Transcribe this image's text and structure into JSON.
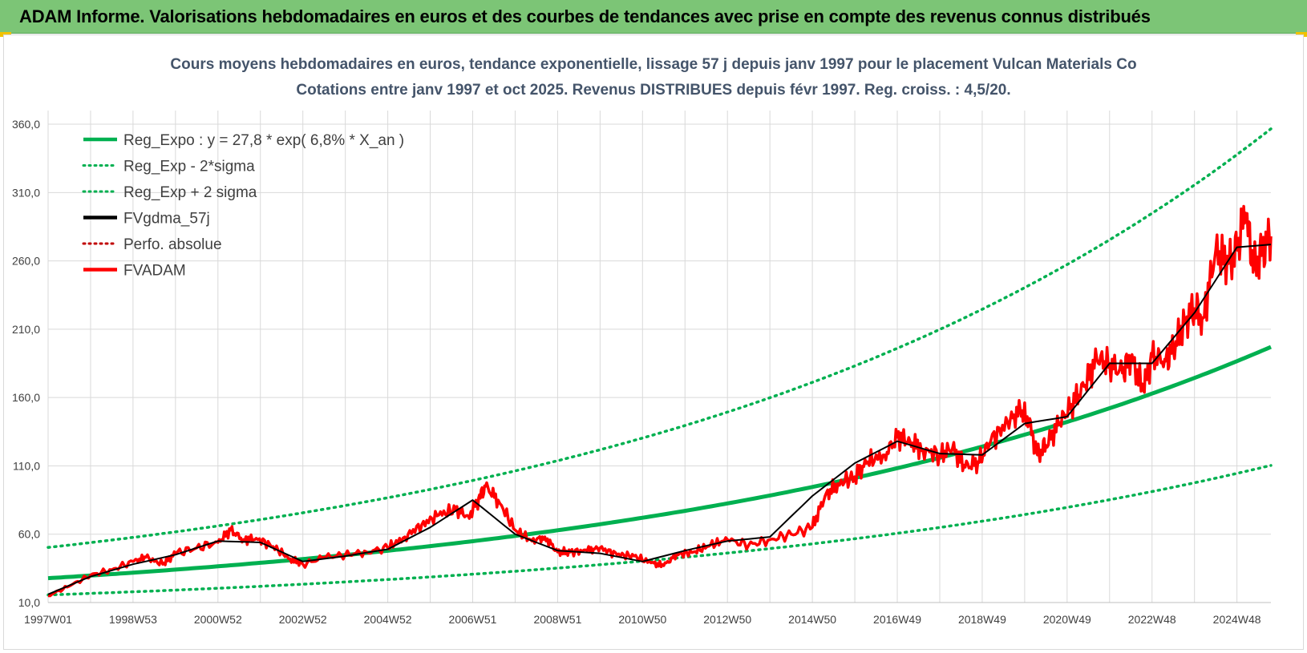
{
  "banner": {
    "title": "ADAM Informe. Valorisations hebdomadaires en euros et des courbes de tendances avec prise en compte des revenus connus distribués"
  },
  "colors": {
    "banner_bg": "#7cc576",
    "trend": "#00b050",
    "smooth": "#000000",
    "price": "#ff0000",
    "perf": "#c00000",
    "grid": "#d9d9d9"
  },
  "chart_data": {
    "type": "line",
    "title": "Cours moyens hebdomadaires en euros, tendance exponentielle, lissage 57 j depuis janv 1997 pour le placement Vulcan Materials Co",
    "subtitle": "Cotations entre janv 1997 et oct 2025. Revenus DISTRIBUES depuis févr 1997. Reg. croiss. : 4,5/20.",
    "xlabel": "",
    "ylabel": "",
    "ylim": [
      10,
      370
    ],
    "y_ticks": [
      "10,0",
      "60,0",
      "110,0",
      "160,0",
      "210,0",
      "260,0",
      "310,0",
      "360,0"
    ],
    "x_range": [
      1997.0,
      2025.8
    ],
    "x_ticks": [
      {
        "label": "1997W01",
        "year": 1997.0
      },
      {
        "label": "1998W53",
        "year": 1999.0
      },
      {
        "label": "2000W52",
        "year": 2001.0
      },
      {
        "label": "2002W52",
        "year": 2003.0
      },
      {
        "label": "2004W52",
        "year": 2005.0
      },
      {
        "label": "2006W51",
        "year": 2007.0
      },
      {
        "label": "2008W51",
        "year": 2009.0
      },
      {
        "label": "2010W50",
        "year": 2011.0
      },
      {
        "label": "2012W50",
        "year": 2013.0
      },
      {
        "label": "2014W50",
        "year": 2015.0
      },
      {
        "label": "2016W49",
        "year": 2017.0
      },
      {
        "label": "2018W49",
        "year": 2019.0
      },
      {
        "label": "2020W49",
        "year": 2021.0
      },
      {
        "label": "2022W48",
        "year": 2023.0
      },
      {
        "label": "2024W48",
        "year": 2025.0
      }
    ],
    "grid": true,
    "legend_position": "top-left",
    "legend": [
      {
        "name": "Reg_Expo : y = 27,8 * exp( 6,8% *  X_an )",
        "color": "#00b050",
        "style": "solid"
      },
      {
        "name": "Reg_Exp - 2*sigma",
        "color": "#00b050",
        "style": "dotted"
      },
      {
        "name": "Reg_Exp + 2 sigma",
        "color": "#00b050",
        "style": "dotted"
      },
      {
        "name": "FVgdma_57j",
        "color": "#000000",
        "style": "solid"
      },
      {
        "name": "Perfo. absolue",
        "color": "#c00000",
        "style": "dotted"
      },
      {
        "name": "FVADAM",
        "color": "#ff0000",
        "style": "solid"
      }
    ],
    "trend": {
      "a": 27.8,
      "b": 0.068,
      "lower_factor": 0.56,
      "upper_factor": 1.81
    },
    "series": [
      {
        "name": "FVADAM",
        "x": [
          1997.0,
          1997.5,
          1998.0,
          1998.5,
          1999.0,
          1999.3,
          1999.7,
          2000.0,
          2000.5,
          2001.0,
          2001.3,
          2001.6,
          2001.9,
          2002.3,
          2002.7,
          2003.0,
          2003.5,
          2004.0,
          2004.5,
          2005.0,
          2005.4,
          2005.8,
          2006.2,
          2006.6,
          2006.9,
          2007.1,
          2007.3,
          2007.6,
          2008.0,
          2008.4,
          2008.7,
          2009.0,
          2009.3,
          2009.7,
          2010.0,
          2010.4,
          2010.8,
          2011.2,
          2011.5,
          2011.8,
          2012.2,
          2012.6,
          2013.0,
          2013.5,
          2014.0,
          2014.5,
          2015.0,
          2015.3,
          2015.6,
          2016.0,
          2016.3,
          2016.7,
          2017.0,
          2017.3,
          2017.6,
          2018.0,
          2018.3,
          2018.6,
          2018.9,
          2019.2,
          2019.6,
          2019.9,
          2020.1,
          2020.3,
          2020.5,
          2020.8,
          2021.1,
          2021.4,
          2021.7,
          2022.0,
          2022.3,
          2022.5,
          2022.8,
          2023.0,
          2023.3,
          2023.5,
          2023.8,
          2024.0,
          2024.2,
          2024.5,
          2024.8,
          2025.0,
          2025.2,
          2025.4,
          2025.6,
          2025.8
        ],
        "y": [
          15,
          22,
          30,
          34,
          40,
          43,
          38,
          46,
          50,
          54,
          63,
          56,
          57,
          51,
          42,
          38,
          43,
          45,
          47,
          50,
          58,
          67,
          74,
          78,
          73,
          83,
          95,
          85,
          63,
          55,
          58,
          47,
          47,
          48,
          50,
          45,
          44,
          39,
          37,
          45,
          47,
          52,
          56,
          52,
          56,
          60,
          65,
          88,
          97,
          102,
          113,
          118,
          131,
          128,
          122,
          118,
          123,
          109,
          113,
          128,
          142,
          150,
          142,
          118,
          125,
          140,
          155,
          168,
          188,
          185,
          178,
          190,
          165,
          190,
          188,
          195,
          218,
          225,
          218,
          268,
          258,
          268,
          295,
          255,
          268,
          278
        ]
      },
      {
        "name": "FVgdma_57j",
        "x": [
          1997.0,
          1998.0,
          1999.0,
          2000.0,
          2001.0,
          2002.0,
          2003.0,
          2004.0,
          2005.0,
          2006.0,
          2007.0,
          2008.0,
          2009.0,
          2010.0,
          2011.0,
          2012.0,
          2013.0,
          2014.0,
          2015.0,
          2016.0,
          2017.0,
          2018.0,
          2019.0,
          2020.0,
          2021.0,
          2022.0,
          2023.0,
          2024.0,
          2025.0,
          2025.8
        ],
        "y": [
          16,
          29,
          38,
          45,
          55,
          54,
          40,
          44,
          49,
          65,
          85,
          60,
          48,
          46,
          40,
          48,
          55,
          58,
          88,
          112,
          128,
          119,
          118,
          141,
          146,
          185,
          185,
          222,
          270,
          272
        ]
      }
    ]
  }
}
